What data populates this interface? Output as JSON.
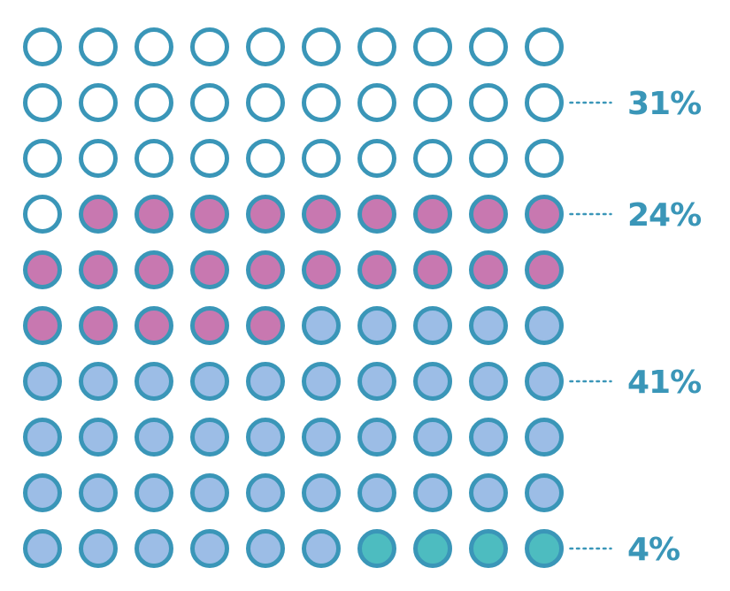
{
  "chart_data": {
    "type": "waffle",
    "grid": {
      "rows": 10,
      "columns": 10
    },
    "units_total": 100,
    "series": [
      {
        "value": 31,
        "label": "31%",
        "color": "#ffffff"
      },
      {
        "value": 24,
        "label": "24%",
        "color": "#c878b0"
      },
      {
        "value": 41,
        "label": "41%",
        "color": "#9cbde6"
      },
      {
        "value": 4,
        "label": "4%",
        "color": "#4dbcc0"
      }
    ],
    "outline_color": "#3a96b8",
    "label_color": "#3a96b8",
    "legend": "right"
  }
}
